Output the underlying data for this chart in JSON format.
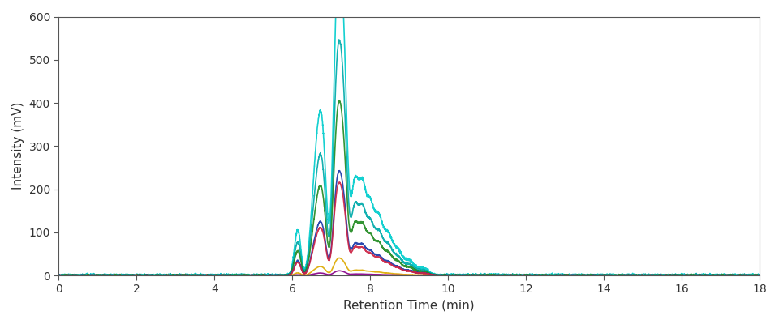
{
  "xlabel": "Retention Time (min)",
  "ylabel": "Intensity (mV)",
  "xlim": [
    0,
    18
  ],
  "ylim": [
    0,
    600
  ],
  "xticks": [
    0,
    2,
    4,
    6,
    8,
    10,
    12,
    14,
    16,
    18
  ],
  "yticks": [
    0,
    100,
    200,
    300,
    400,
    500,
    600
  ],
  "background_color": "#ffffff",
  "series": [
    {
      "color": "#00CCCC",
      "max_peak": 550
    },
    {
      "color": "#00AAAA",
      "max_peak": 405
    },
    {
      "color": "#228B22",
      "max_peak": 300
    },
    {
      "color": "#1A3AAA",
      "max_peak": 180
    },
    {
      "color": "#CC2244",
      "max_peak": 160
    },
    {
      "color": "#DDAA00",
      "max_peak": 30
    },
    {
      "color": "#880088",
      "max_peak": 8
    }
  ],
  "figsize": [
    9.6,
    4.0
  ],
  "dpi": 100
}
